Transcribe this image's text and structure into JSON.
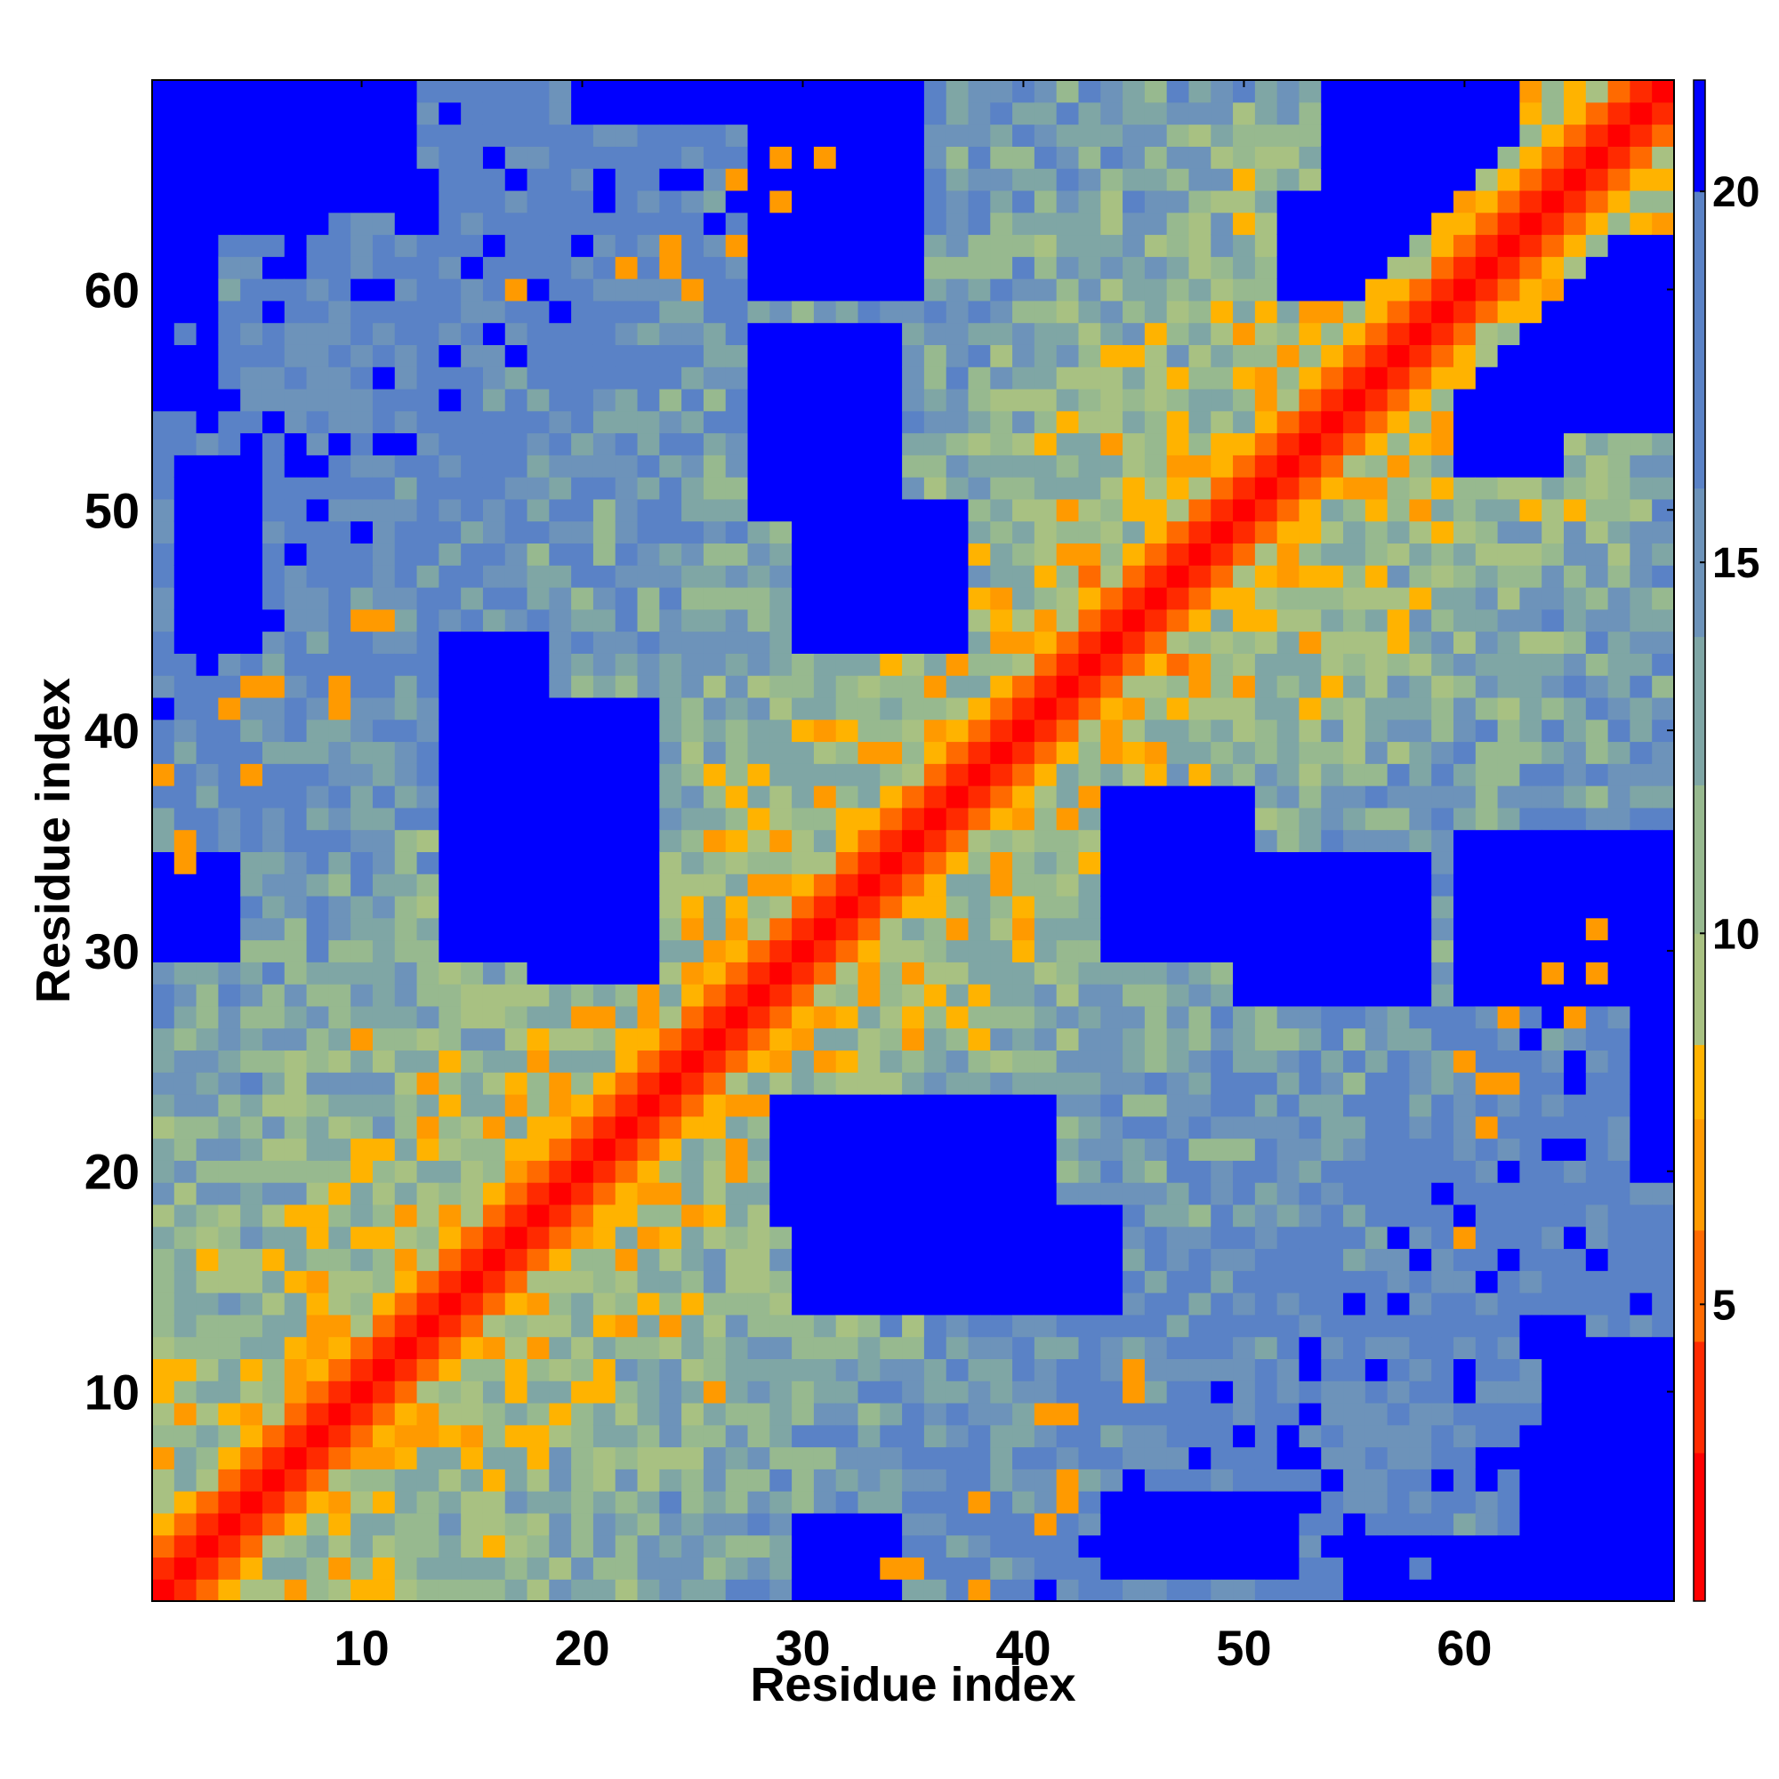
{
  "chart_data": {
    "type": "heatmap",
    "title": "",
    "xlabel": "Residue index",
    "ylabel": "Residue index",
    "x_range": [
      1,
      69
    ],
    "y_range": [
      1,
      69
    ],
    "x_ticks": [
      10,
      20,
      30,
      40,
      50,
      60
    ],
    "y_ticks": [
      10,
      20,
      30,
      40,
      50,
      60
    ],
    "colorbar": {
      "range": [
        1,
        21.5
      ],
      "ticks": [
        5,
        10,
        15,
        20
      ],
      "colors": [
        {
          "max": 3.0,
          "color": "#ff0000"
        },
        {
          "max": 4.5,
          "color": "#ff2a00"
        },
        {
          "max": 6.0,
          "color": "#ff6a00"
        },
        {
          "max": 7.5,
          "color": "#ff9a00"
        },
        {
          "max": 8.5,
          "color": "#ffb300"
        },
        {
          "max": 10.0,
          "color": "#a8c182"
        },
        {
          "max": 12.0,
          "color": "#97b98f"
        },
        {
          "max": 14.0,
          "color": "#7fa6a5"
        },
        {
          "max": 16.0,
          "color": "#6d93ba"
        },
        {
          "max": 20.0,
          "color": "#5a82c6"
        },
        {
          "max": 99.0,
          "color": "#0000ff"
        }
      ]
    },
    "matrix_size": 69,
    "diagonal_band": "red (< 4) along diagonal, orange near diagonal",
    "off_diagonal_contacts": [
      {
        "i": 4,
        "j": 41,
        "value": 6
      },
      {
        "i": 6,
        "j": 42,
        "value": 6
      },
      {
        "i": 10,
        "j": 45,
        "value": 7
      },
      {
        "i": 11,
        "j": 45,
        "value": 7
      },
      {
        "i": 9,
        "j": 42,
        "value": 6
      },
      {
        "i": 5,
        "j": 38,
        "value": 7
      },
      {
        "i": 1,
        "j": 38,
        "value": 7
      },
      {
        "i": 2,
        "j": 35,
        "value": 6
      },
      {
        "i": 10,
        "j": 26,
        "value": 7
      },
      {
        "i": 13,
        "j": 24,
        "value": 6
      },
      {
        "i": 17,
        "j": 23,
        "value": 6
      },
      {
        "i": 22,
        "j": 61,
        "value": 7
      },
      {
        "i": 24,
        "j": 62,
        "value": 6
      },
      {
        "i": 27,
        "j": 65,
        "value": 6
      },
      {
        "i": 29,
        "j": 66,
        "value": 6
      },
      {
        "i": 17,
        "j": 60,
        "value": 6
      },
      {
        "i": 60,
        "j": 25,
        "value": 6
      },
      {
        "i": 61,
        "j": 24,
        "value": 6
      },
      {
        "i": 62,
        "j": 27,
        "value": 6
      },
      {
        "i": 64,
        "j": 29,
        "value": 6
      },
      {
        "i": 66,
        "j": 31,
        "value": 6
      },
      {
        "i": 42,
        "j": 5,
        "value": 6
      },
      {
        "i": 45,
        "j": 10,
        "value": 7
      },
      {
        "i": 41,
        "j": 9,
        "value": 6
      },
      {
        "i": 34,
        "j": 2,
        "value": 6
      },
      {
        "i": 60,
        "j": 17,
        "value": 6
      },
      {
        "i": 52,
        "j": 48,
        "value": 6
      },
      {
        "i": 57,
        "j": 52,
        "value": 6
      }
    ]
  }
}
